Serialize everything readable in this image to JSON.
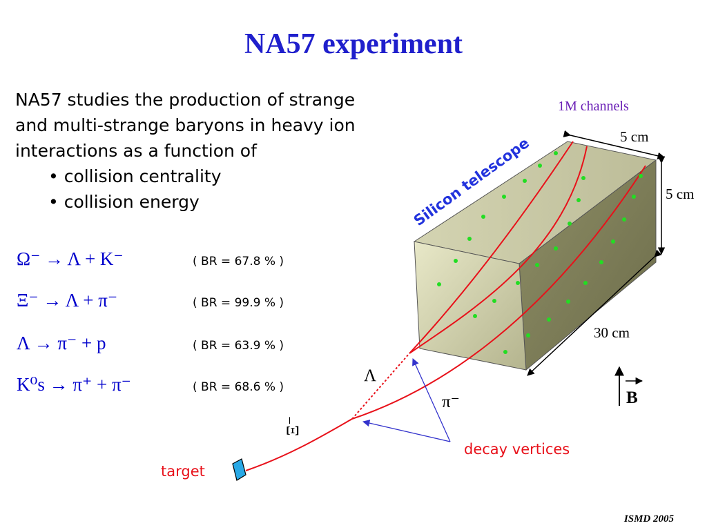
{
  "title": "NA57 experiment",
  "intro": {
    "lines": [
      "NA57 studies the production of strange",
      "and multi-strange baryons in heavy ion",
      "interactions as a function of"
    ],
    "bullets": [
      "• collision centrality",
      "• collision energy"
    ]
  },
  "decays": [
    {
      "equation": "Ω⁻ → Λ + K⁻",
      "br": "( BR = 67.8 % )"
    },
    {
      "equation": "Ξ⁻ → Λ + π⁻",
      "br": "( BR = 99.9 % )"
    },
    {
      "equation": "Λ → π⁻ + p",
      "br": "( BR = 63.9 % )"
    },
    {
      "equation": "K⁰s → π⁺ + π⁻",
      "br": "( BR = 68.6 % )"
    }
  ],
  "diagram": {
    "channels": "1M channels",
    "telescope": "Silicon telescope",
    "width": "5 cm",
    "height": "5 cm",
    "length": "30 cm",
    "lambda": "Λ",
    "pi": "π⁻",
    "xi": "Ξ⁻",
    "vertices": "decay vertices",
    "target": "target",
    "field": "B"
  },
  "footer": "ISMD 2005",
  "colors": {
    "title": "#1f1fcc",
    "track": "#e8111a",
    "hit": "#22dd22",
    "box": "#9a9a72",
    "arrow": "#3333cc"
  }
}
